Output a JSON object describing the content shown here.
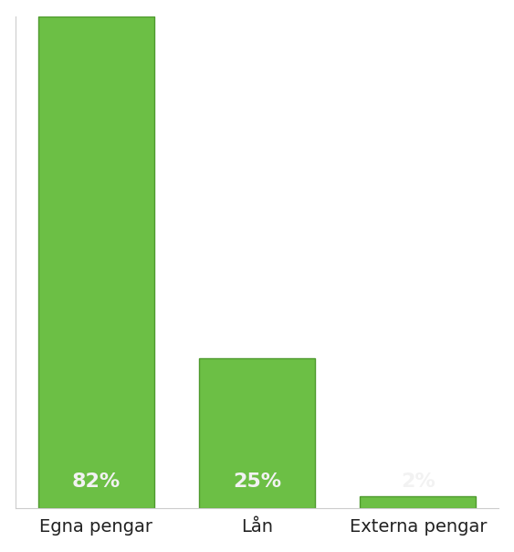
{
  "chart_data": {
    "type": "bar",
    "categories": [
      "Egna pengar",
      "Lån",
      "Externa pengar"
    ],
    "values": [
      82,
      25,
      2
    ],
    "value_labels": [
      "82%",
      "25%",
      "2%"
    ],
    "data_labels": true,
    "color": "#6cbf45",
    "ylim": [
      0,
      82
    ],
    "yticks": [],
    "tick_labels": "x",
    "grid": false
  }
}
